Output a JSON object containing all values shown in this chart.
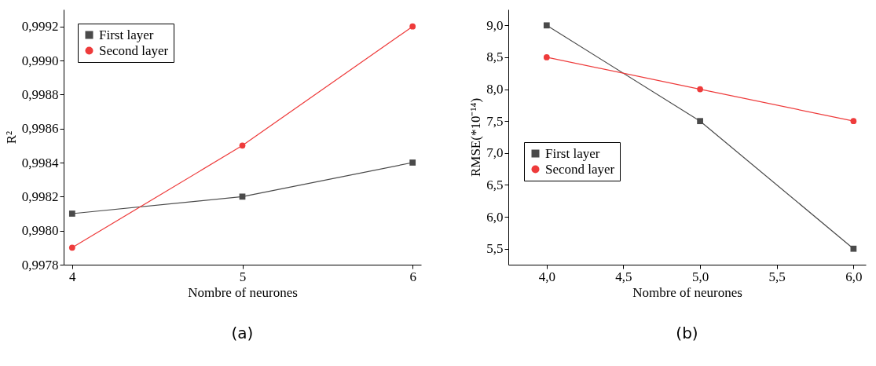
{
  "chart_data": [
    {
      "type": "line",
      "xlabel": "Nombre of neurones",
      "ylabel": "R²",
      "x": [
        4,
        5,
        6
      ],
      "series": [
        {
          "name": "First layer",
          "color": "#4a4a4a",
          "marker": "square",
          "values": [
            0.9981,
            0.9982,
            0.9984
          ]
        },
        {
          "name": "Second layer",
          "color": "#ee3b3b",
          "marker": "circle",
          "values": [
            0.9979,
            0.9985,
            0.9992
          ]
        }
      ],
      "xlim": [
        3.95,
        6.05
      ],
      "ylim": [
        0.9978,
        0.9993
      ],
      "xticks": [
        4,
        5,
        6
      ],
      "yticks": [
        {
          "value": 0.9978,
          "label": "0,9978"
        },
        {
          "value": 0.998,
          "label": "0,9980"
        },
        {
          "value": 0.9982,
          "label": "0,9982"
        },
        {
          "value": 0.9984,
          "label": "0,9984"
        },
        {
          "value": 0.9986,
          "label": "0,9986"
        },
        {
          "value": 0.9988,
          "label": "0,9988"
        },
        {
          "value": 0.999,
          "label": "0,9990"
        },
        {
          "value": 0.9992,
          "label": "0,9992"
        }
      ],
      "grid": false,
      "legend": "top left",
      "line_style": "solid",
      "annotations": [
        "(a)"
      ]
    },
    {
      "type": "line",
      "xlabel": "Nombre of neurones",
      "ylabel": "RMSE(*10⁻¹⁴)",
      "x": [
        4,
        5,
        6
      ],
      "series": [
        {
          "name": "First layer",
          "color": "#4a4a4a",
          "marker": "square",
          "values": [
            9.0,
            7.5,
            5.5
          ]
        },
        {
          "name": "Second layer",
          "color": "#ee3b3b",
          "marker": "circle",
          "values": [
            8.5,
            8.0,
            7.5
          ]
        }
      ],
      "xlim": [
        3.75,
        6.08
      ],
      "ylim": [
        5.25,
        9.25
      ],
      "xticks": [
        {
          "value": 4,
          "label": "4,0"
        },
        {
          "value": 4.5,
          "label": "4,5"
        },
        {
          "value": 5,
          "label": "5,0"
        },
        {
          "value": 5.5,
          "label": "5,5"
        },
        {
          "value": 6,
          "label": "6,0"
        }
      ],
      "yticks": [
        {
          "value": 5.5,
          "label": "5,5"
        },
        {
          "value": 6,
          "label": "6,0"
        },
        {
          "value": 6.5,
          "label": "6,5"
        },
        {
          "value": 7,
          "label": "7,0"
        },
        {
          "value": 7.5,
          "label": "7,5"
        },
        {
          "value": 8,
          "label": "8,0"
        },
        {
          "value": 8.5,
          "label": "8,5"
        },
        {
          "value": 9,
          "label": "9,0"
        }
      ],
      "grid": false,
      "legend": "left",
      "line_style": "solid",
      "annotations": [
        "(b)"
      ]
    }
  ]
}
